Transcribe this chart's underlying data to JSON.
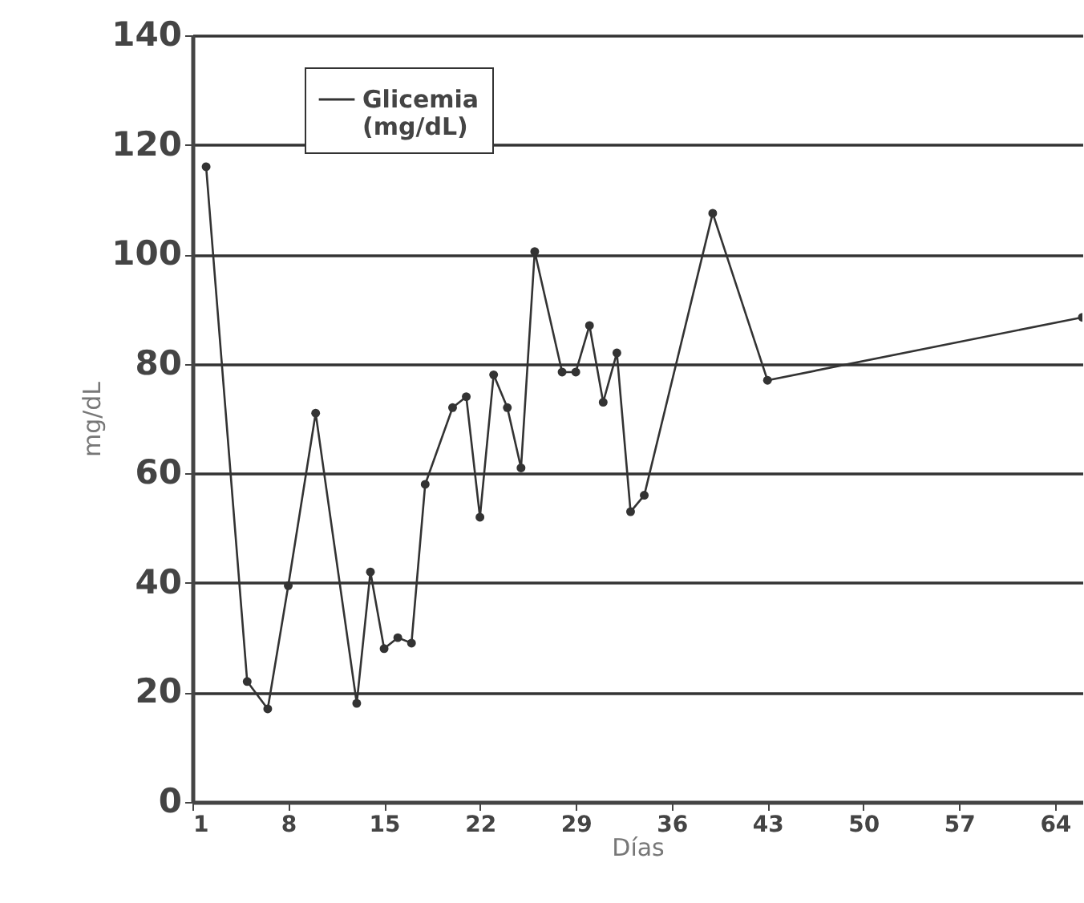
{
  "chart_data": {
    "type": "line",
    "xlabel": "Días",
    "ylabel": "mg/dL",
    "xlim": [
      1,
      66
    ],
    "xticks": [
      1,
      8,
      15,
      22,
      29,
      36,
      43,
      50,
      57,
      64
    ],
    "ylim": [
      0,
      140
    ],
    "yticks": [
      0,
      20,
      40,
      60,
      80,
      100,
      120,
      140
    ],
    "grid": "y",
    "legend": "top left",
    "marker": "circle",
    "line_style": "solid",
    "series": [
      {
        "name": "Glicemia (mg/dL)",
        "color": "#333333",
        "x": [
          2,
          5,
          6.5,
          8,
          10,
          13,
          14,
          15,
          16,
          17,
          18,
          20,
          21,
          22,
          23,
          24,
          25,
          26,
          28,
          29,
          30,
          31,
          32,
          33,
          34,
          39,
          43,
          66
        ],
        "values": [
          116,
          22,
          17,
          39.5,
          71,
          18,
          42,
          28,
          30,
          29,
          58,
          72,
          74,
          52,
          78,
          72,
          61,
          100.5,
          78.5,
          78.5,
          87,
          73,
          82,
          53,
          56,
          107.5,
          77,
          88.5
        ]
      }
    ]
  }
}
